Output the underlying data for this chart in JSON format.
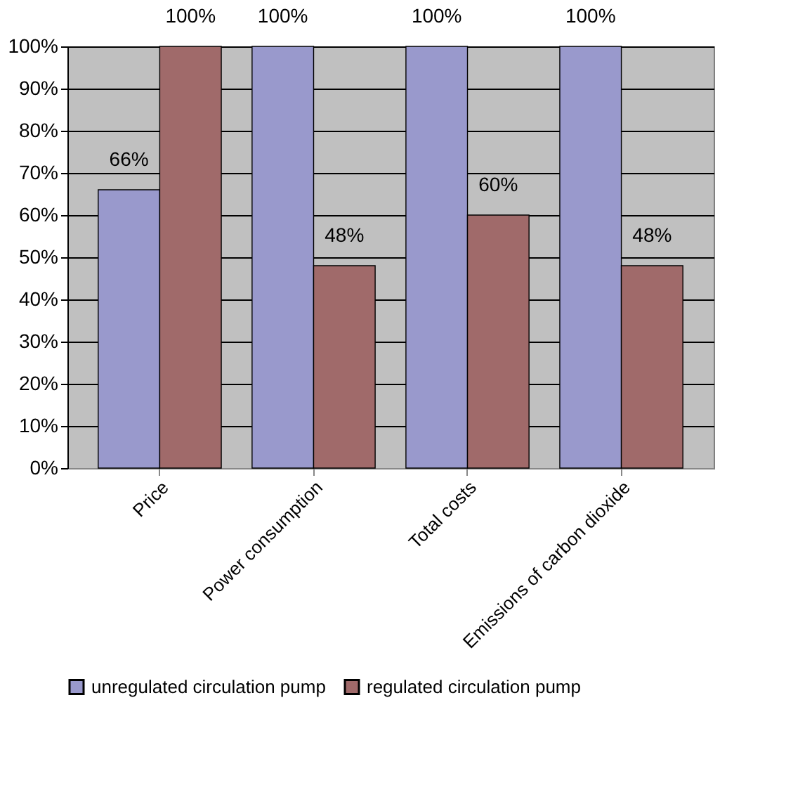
{
  "chart_data": {
    "type": "bar",
    "categories": [
      "Price",
      "Power consumption",
      "Total costs",
      "Emissions of carbon dioxide"
    ],
    "series": [
      {
        "name": "unregulated circulation pump",
        "color": "#9999cc",
        "values": [
          66,
          100,
          100,
          100
        ],
        "value_labels": [
          "66%",
          "100%",
          "100%",
          "100%"
        ]
      },
      {
        "name": "regulated circulation pump",
        "color": "#a06a6a",
        "values": [
          100,
          48,
          60,
          48
        ],
        "value_labels": [
          "100%",
          "48%",
          "60%",
          "48%"
        ]
      }
    ],
    "ylim": [
      0,
      100
    ],
    "yticks": [
      {
        "value": 0,
        "label": "0%"
      },
      {
        "value": 10,
        "label": "10%"
      },
      {
        "value": 20,
        "label": "20%"
      },
      {
        "value": 30,
        "label": "30%"
      },
      {
        "value": 40,
        "label": "40%"
      },
      {
        "value": 50,
        "label": "50%"
      },
      {
        "value": 60,
        "label": "60%"
      },
      {
        "value": 70,
        "label": "70%"
      },
      {
        "value": 80,
        "label": "80%"
      },
      {
        "value": 90,
        "label": "90%"
      },
      {
        "value": 100,
        "label": "100%"
      }
    ],
    "grid": "y",
    "legend": "bottom"
  }
}
